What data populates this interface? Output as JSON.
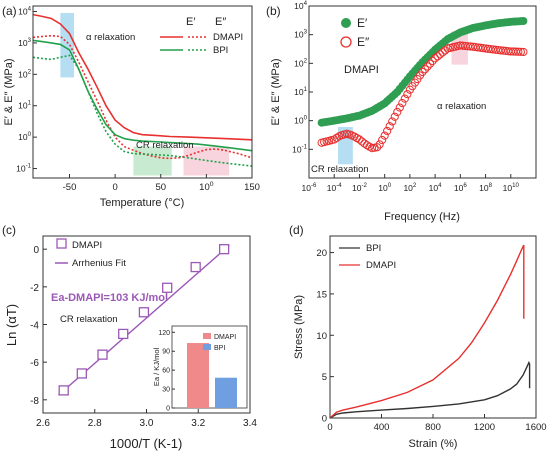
{
  "chart_data": [
    {
      "panel": "(a)",
      "type": "line",
      "xlabel": "Temperature (°C)",
      "ylabel": "E′ & E″ (MPa)",
      "yscale": "log",
      "xlim": [
        -90,
        150
      ],
      "ylim": [
        0.05,
        15000
      ],
      "xticks": [
        "-50",
        "0",
        "50",
        "100",
        "150"
      ],
      "yticks": [
        "10-1",
        "100",
        "101",
        "102",
        "103",
        "104"
      ],
      "legend": {
        "placement": "top-right",
        "headers": [
          "E′",
          "E″"
        ],
        "rows": [
          "DMAPI",
          "BPI"
        ]
      },
      "annotations": [
        "α relaxation",
        "CR relaxation"
      ],
      "shaded_regions": [
        {
          "x": [
            -60,
            -45
          ],
          "y": [
            80,
            9000
          ],
          "color": "#9dd3ee"
        },
        {
          "x": [
            20,
            62
          ],
          "y": [
            0.06,
            0.5
          ],
          "color": "#b5e3c0"
        },
        {
          "x": [
            75,
            125
          ],
          "y": [
            0.06,
            0.5
          ],
          "color": "#f4c6d3"
        }
      ],
      "series": [
        {
          "name": "DMAPI",
          "modulus": "E′",
          "style": "solid",
          "color": "#e8302f",
          "x": [
            -90,
            -80,
            -70,
            -60,
            -50,
            -40,
            -30,
            -20,
            -10,
            0,
            10,
            20,
            30,
            40,
            50,
            60,
            80,
            100,
            120,
            150
          ],
          "y": [
            8000,
            7000,
            6000,
            4000,
            2000,
            500,
            150,
            40,
            10,
            3.5,
            2,
            1.4,
            1.2,
            1.15,
            1.1,
            1.05,
            1,
            0.95,
            0.9,
            0.82
          ]
        },
        {
          "name": "DMAPI",
          "modulus": "E″",
          "style": "dotted",
          "color": "#e8302f",
          "x": [
            -90,
            -80,
            -70,
            -60,
            -50,
            -40,
            -30,
            -20,
            -10,
            0,
            10,
            20,
            30,
            40,
            50,
            60,
            70,
            80,
            90,
            100,
            110,
            120,
            135,
            150
          ],
          "y": [
            1500,
            1600,
            1700,
            1600,
            900,
            250,
            60,
            15,
            3.5,
            1,
            0.5,
            0.38,
            0.3,
            0.25,
            0.22,
            0.21,
            0.22,
            0.26,
            0.33,
            0.4,
            0.42,
            0.38,
            0.3,
            0.22
          ]
        },
        {
          "name": "BPI",
          "modulus": "E′",
          "style": "solid",
          "color": "#22a14c",
          "x": [
            -90,
            -80,
            -70,
            -60,
            -50,
            -40,
            -30,
            -20,
            -10,
            0,
            10,
            20,
            30,
            50,
            70,
            90,
            110,
            130,
            150
          ],
          "y": [
            1200,
            1100,
            1000,
            900,
            600,
            150,
            30,
            8,
            2.5,
            1.2,
            0.9,
            0.8,
            0.75,
            0.7,
            0.65,
            0.6,
            0.52,
            0.44,
            0.37
          ]
        },
        {
          "name": "BPI",
          "modulus": "E″",
          "style": "dotted",
          "color": "#22a14c",
          "x": [
            -90,
            -80,
            -70,
            -60,
            -50,
            -40,
            -30,
            -20,
            -10,
            0,
            10,
            20,
            40,
            60,
            80,
            100,
            120,
            150
          ],
          "y": [
            350,
            320,
            300,
            350,
            400,
            150,
            30,
            6,
            1.5,
            0.6,
            0.35,
            0.3,
            0.28,
            0.26,
            0.22,
            0.18,
            0.15,
            0.12
          ]
        }
      ]
    },
    {
      "panel": "(b)",
      "type": "scatter",
      "xlabel": "Frequency (Hz)",
      "ylabel": "E′ & E″ (MPa)",
      "xscale": "log",
      "yscale": "log",
      "xlim": [
        1e-06,
        1000000000000.0
      ],
      "ylim": [
        0.01,
        10000
      ],
      "xticks": [
        "10-6",
        "10-4",
        "10-2",
        "100",
        "102",
        "104",
        "106",
        "108",
        "1010"
      ],
      "yticks": [
        "10-1",
        "100",
        "101",
        "102",
        "103",
        "104"
      ],
      "legend": {
        "placement": "top-center",
        "entries": [
          "E′",
          "E″"
        ]
      },
      "annotations": [
        "DMAPI",
        "α relaxation",
        "CR relaxation"
      ],
      "shaded_regions": [
        {
          "x": [
            0.0002,
            0.003
          ],
          "y": [
            0.03,
            0.6
          ],
          "color": "#9dd3ee"
        },
        {
          "x": [
            200000.0,
            4000000.0
          ],
          "y": [
            90,
            1300
          ],
          "color": "#f4c6d3"
        }
      ],
      "series": [
        {
          "name": "E′",
          "marker": "filled-circle",
          "color": "#2f9e52",
          "x": [
            1e-05,
            0.0001,
            0.001,
            0.01,
            0.1,
            1,
            10,
            100,
            1000.0,
            10000.0,
            100000.0,
            1000000.0,
            10000000.0,
            100000000.0,
            1000000000.0,
            10000000000.0,
            100000000000.0
          ],
          "y": [
            0.85,
            1.0,
            1.2,
            1.5,
            2.2,
            4,
            10,
            35,
            110,
            300,
            700,
            1200,
            1700,
            2100,
            2500,
            2800,
            3000
          ]
        },
        {
          "name": "E″",
          "marker": "open-circle",
          "color": "#e8302f",
          "x": [
            1e-05,
            0.0001,
            0.0003,
            0.001,
            0.003,
            0.01,
            0.03,
            0.1,
            0.3,
            1,
            10,
            100,
            1000.0,
            10000.0,
            100000.0,
            1000000.0,
            10000000.0,
            100000000.0,
            1000000000.0,
            10000000000.0,
            100000000000.0
          ],
          "y": [
            0.17,
            0.22,
            0.3,
            0.35,
            0.3,
            0.22,
            0.15,
            0.11,
            0.12,
            0.3,
            2,
            12,
            50,
            150,
            330,
            420,
            380,
            330,
            290,
            260,
            250
          ]
        }
      ]
    },
    {
      "panel": "(c)",
      "type": "scatter",
      "xlabel": "1000/T (K-1)",
      "ylabel": "Ln (αT)",
      "xlim": [
        2.6,
        3.4
      ],
      "ylim": [
        -8.7,
        0.7
      ],
      "xticks": [
        "2.6",
        "2.8",
        "3.0",
        "3.2",
        "3.4"
      ],
      "yticks": [
        "-8",
        "-6",
        "-4",
        "-2",
        "0"
      ],
      "legend": {
        "placement": "top-left",
        "entries": [
          "DMAPI",
          "Arrhenius Fit"
        ]
      },
      "annotations": [
        "Ea-DMAPI=103 KJ/mol",
        "CR relaxation"
      ],
      "series": [
        {
          "name": "DMAPI",
          "marker": "open-square",
          "color": "#9b59b6",
          "x": [
            2.68,
            2.75,
            2.83,
            2.91,
            2.99,
            3.08,
            3.19,
            3.3
          ],
          "y": [
            -7.5,
            -6.6,
            -5.6,
            -4.5,
            -3.35,
            -2.05,
            -0.95,
            0.0
          ]
        },
        {
          "name": "Arrhenius Fit",
          "style": "line",
          "color": "#9b59b6",
          "x": [
            2.66,
            3.32
          ],
          "y": [
            -7.75,
            0.2
          ]
        }
      ],
      "inset": {
        "type": "bar",
        "ylabel": "Ea / KJ/mol",
        "ylim": [
          0,
          130
        ],
        "yticks": [
          "0",
          "30",
          "60",
          "90",
          "120"
        ],
        "categories": [
          "DMAPI",
          "BPI"
        ],
        "values": [
          103,
          48
        ],
        "colors": [
          "#f08a8a",
          "#6f9fe0"
        ]
      }
    },
    {
      "panel": "(d)",
      "type": "line",
      "xlabel": "Strain (%)",
      "ylabel": "Stress (MPa)",
      "xlim": [
        0,
        1600
      ],
      "ylim": [
        0,
        22
      ],
      "xticks": [
        "0",
        "400",
        "800",
        "1200",
        "1600"
      ],
      "yticks": [
        "0",
        "5",
        "10",
        "15",
        "20"
      ],
      "legend": {
        "placement": "top-left",
        "entries": [
          "BPI",
          "DMAPI"
        ]
      },
      "series": [
        {
          "name": "BPI",
          "color": "#333333",
          "x": [
            0,
            50,
            100,
            200,
            400,
            600,
            800,
            1000,
            1200,
            1300,
            1400,
            1450,
            1500,
            1530,
            1545,
            1550,
            1550
          ],
          "y": [
            0,
            0.45,
            0.6,
            0.75,
            0.95,
            1.15,
            1.4,
            1.7,
            2.2,
            2.7,
            3.5,
            4.1,
            5.2,
            6.2,
            6.7,
            6.5,
            3.6
          ]
        },
        {
          "name": "DMAPI",
          "color": "#e8302f",
          "x": [
            0,
            50,
            100,
            200,
            400,
            600,
            800,
            1000,
            1100,
            1200,
            1300,
            1400,
            1450,
            1490,
            1505,
            1505
          ],
          "y": [
            0,
            0.7,
            0.95,
            1.3,
            2.1,
            3.1,
            4.6,
            7.2,
            9.1,
            11.5,
            14.2,
            17.3,
            19.0,
            20.4,
            20.9,
            12.0
          ]
        }
      ]
    }
  ]
}
